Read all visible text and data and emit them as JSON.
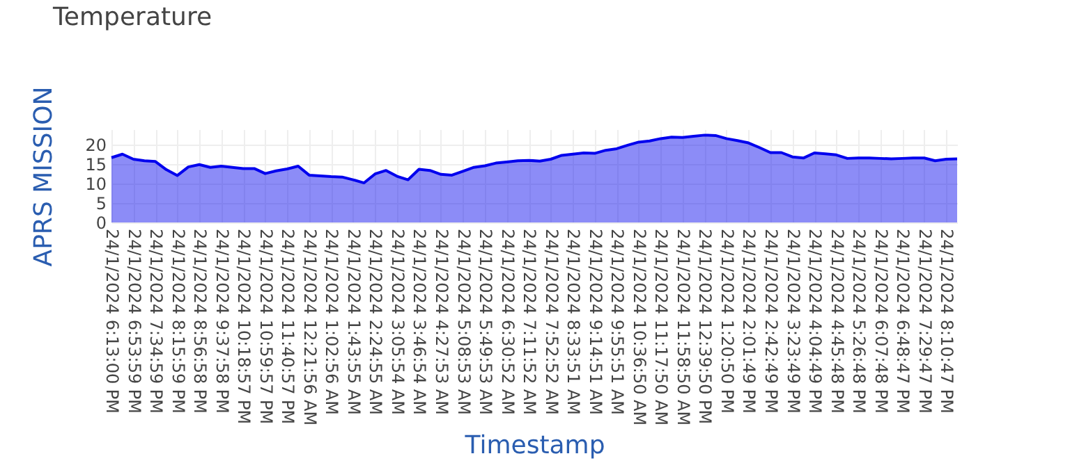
{
  "chart_data": {
    "type": "area",
    "title": "Temperature",
    "xlabel": "Timestamp",
    "ylabel": "APRS MISSION",
    "categories": [
      "24/1/2024 6:13:00 PM",
      null,
      "24/1/2024 6:53:59 PM",
      null,
      "24/1/2024 7:34:59 PM",
      null,
      "24/1/2024 8:15:59 PM",
      null,
      "24/1/2024 8:56:58 PM",
      null,
      "24/1/2024 9:37:58 PM",
      null,
      "24/1/2024 10:18:57 PM",
      null,
      "24/1/2024 10:59:57 PM",
      null,
      "24/1/2024 11:40:57 PM",
      null,
      "24/1/2024 12:21:56 AM",
      null,
      "24/1/2024 1:02:56 AM",
      null,
      "24/1/2024 1:43:55 AM",
      null,
      "24/1/2024 2:24:55 AM",
      null,
      "24/1/2024 3:05:54 AM",
      null,
      "24/1/2024 3:46:54 AM",
      null,
      "24/1/2024 4:27:53 AM",
      null,
      "24/1/2024 5:08:53 AM",
      null,
      "24/1/2024 5:49:53 AM",
      null,
      "24/1/2024 6:30:52 AM",
      null,
      "24/1/2024 7:11:52 AM",
      null,
      "24/1/2024 7:52:52 AM",
      null,
      "24/1/2024 8:33:51 AM",
      null,
      "24/1/2024 9:14:51 AM",
      null,
      "24/1/2024 9:55:51 AM",
      null,
      "24/1/2024 10:36:50 AM",
      null,
      "24/1/2024 11:17:50 AM",
      null,
      "24/1/2024 11:58:50 AM",
      null,
      "24/1/2024 12:39:50 PM",
      null,
      "24/1/2024 1:20:50 PM",
      null,
      "24/1/2024 2:01:49 PM",
      null,
      "24/1/2024 2:42:49 PM",
      null,
      "24/1/2024 3:23:49 PM",
      null,
      "24/1/2024 4:04:49 PM",
      null,
      "24/1/2024 4:45:48 PM",
      null,
      "24/1/2024 5:26:48 PM",
      null,
      "24/1/2024 6:07:48 PM",
      null,
      "24/1/2024 6:48:47 PM",
      null,
      "24/1/2024 7:29:47 PM",
      null,
      "24/1/2024 8:10:47 PM",
      null
    ],
    "series": [
      {
        "color": "#0000ee",
        "values": [
          16.7,
          17.6,
          16.3,
          15.9,
          15.7,
          13.6,
          12.1,
          14.3,
          14.9,
          14.2,
          14.5,
          14.2,
          13.9,
          13.9,
          12.6,
          13.3,
          13.8,
          14.5,
          12.2,
          12.0,
          11.8,
          11.7,
          11.0,
          10.2,
          12.5,
          13.4,
          11.9,
          11.0,
          13.7,
          13.4,
          12.4,
          12.2,
          13.2,
          14.2,
          14.6,
          15.3,
          15.6,
          15.9,
          16.0,
          15.8,
          16.3,
          17.3,
          17.6,
          17.9,
          17.8,
          18.6,
          19.0,
          19.9,
          20.7,
          21.0,
          21.6,
          22.0,
          21.9,
          22.2,
          22.5,
          22.4,
          21.6,
          21.1,
          20.5,
          19.3,
          18.0,
          18.0,
          16.9,
          16.6,
          17.9,
          17.7,
          17.4,
          16.5,
          16.6,
          16.6,
          16.5,
          16.4,
          16.5,
          16.6,
          16.6,
          15.9,
          16.3,
          16.4
        ]
      }
    ],
    "ylim": [
      0,
      24
    ],
    "yticks": [
      0,
      5,
      10,
      15,
      20
    ],
    "grid": true
  }
}
